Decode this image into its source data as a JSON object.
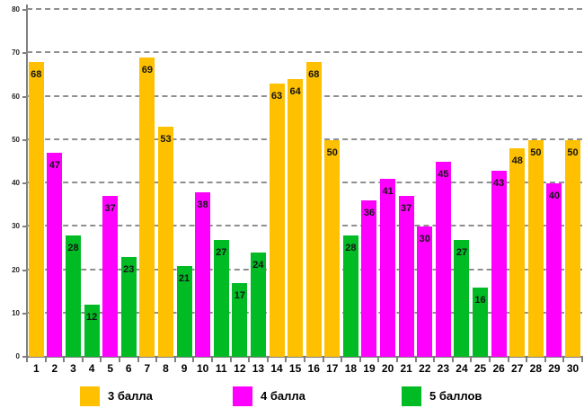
{
  "chart_data": {
    "type": "bar",
    "title": "",
    "xlabel": "",
    "ylabel": "",
    "ylim": [
      0,
      80
    ],
    "y_ticks": [
      0,
      10,
      20,
      30,
      40,
      50,
      60,
      70,
      80
    ],
    "grid": "horizontal dashed",
    "value_labels": "inside bar top, bold black",
    "legend_position": "bottom",
    "categories": [
      "1",
      "2",
      "3",
      "4",
      "5",
      "6",
      "7",
      "8",
      "9",
      "10",
      "11",
      "12",
      "13",
      "14",
      "15",
      "16",
      "17",
      "18",
      "19",
      "20",
      "21",
      "22",
      "23",
      "24",
      "25",
      "26",
      "27",
      "28",
      "29",
      "30"
    ],
    "series_legend": [
      {
        "name": "3 балла",
        "color": "#FFC000"
      },
      {
        "name": "4 балла",
        "color": "#FF00FF"
      },
      {
        "name": "5 баллов",
        "color": "#00BB24"
      }
    ],
    "points": [
      {
        "category": "1",
        "value": 68,
        "series": "3 балла"
      },
      {
        "category": "2",
        "value": 47,
        "series": "4 балла"
      },
      {
        "category": "3",
        "value": 28,
        "series": "5 баллов"
      },
      {
        "category": "4",
        "value": 12,
        "series": "5 баллов"
      },
      {
        "category": "5",
        "value": 37,
        "series": "4 балла"
      },
      {
        "category": "6",
        "value": 23,
        "series": "5 баллов"
      },
      {
        "category": "7",
        "value": 69,
        "series": "3 балла"
      },
      {
        "category": "8",
        "value": 53,
        "series": "3 балла"
      },
      {
        "category": "9",
        "value": 21,
        "series": "5 баллов"
      },
      {
        "category": "10",
        "value": 38,
        "series": "4 балла"
      },
      {
        "category": "11",
        "value": 27,
        "series": "5 баллов"
      },
      {
        "category": "12",
        "value": 17,
        "series": "5 баллов"
      },
      {
        "category": "13",
        "value": 24,
        "series": "5 баллов"
      },
      {
        "category": "14",
        "value": 63,
        "series": "3 балла"
      },
      {
        "category": "15",
        "value": 64,
        "series": "3 балла"
      },
      {
        "category": "16",
        "value": 68,
        "series": "3 балла"
      },
      {
        "category": "17",
        "value": 50,
        "series": "3 балла"
      },
      {
        "category": "18",
        "value": 28,
        "series": "5 баллов"
      },
      {
        "category": "19",
        "value": 36,
        "series": "4 балла"
      },
      {
        "category": "20",
        "value": 41,
        "series": "4 балла"
      },
      {
        "category": "21",
        "value": 37,
        "series": "4 балла"
      },
      {
        "category": "22",
        "value": 30,
        "series": "4 балла"
      },
      {
        "category": "23",
        "value": 45,
        "series": "4 балла"
      },
      {
        "category": "24",
        "value": 27,
        "series": "5 баллов"
      },
      {
        "category": "25",
        "value": 16,
        "series": "5 баллов"
      },
      {
        "category": "26",
        "value": 43,
        "series": "4 балла"
      },
      {
        "category": "27",
        "value": 48,
        "series": "3 балла"
      },
      {
        "category": "28",
        "value": 50,
        "series": "3 балла"
      },
      {
        "category": "29",
        "value": 40,
        "series": "4 балла"
      },
      {
        "category": "30",
        "value": 50,
        "series": "3 балла"
      }
    ]
  }
}
